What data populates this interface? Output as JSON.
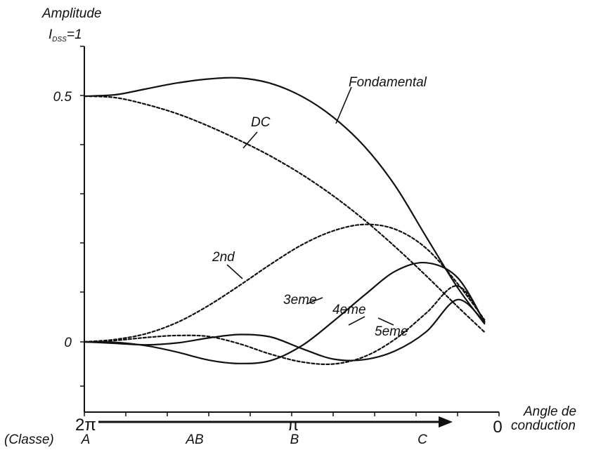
{
  "chart_data": {
    "type": "line",
    "title": "",
    "ylabel_line1": "Amplitude",
    "ylabel_line2_main": "I",
    "ylabel_line2_sub": "DSS",
    "ylabel_line2_rest": "=1",
    "xlabel_line1": "Angle de",
    "xlabel_line2": "conduction",
    "x_tick_labels": [
      "2π",
      "π",
      "0"
    ],
    "y_tick_labels": [
      "0.5",
      "0"
    ],
    "classe_label": "(Classe)",
    "classes": [
      "A",
      "AB",
      "B",
      "C"
    ],
    "xlim": [
      6.2832,
      0
    ],
    "ylim": [
      -0.09,
      0.57
    ],
    "grid": false,
    "legend": "none",
    "series": [
      {
        "name": "Fondamental",
        "style": "solid",
        "x": [
          6.283,
          5.81,
          5.34,
          4.87,
          4.4,
          3.93,
          3.46,
          2.98,
          2.51,
          2.04,
          1.57,
          1.1,
          0.63,
          0.22
        ],
        "y": [
          0.5,
          0.503,
          0.515,
          0.527,
          0.535,
          0.537,
          0.526,
          0.499,
          0.457,
          0.398,
          0.317,
          0.213,
          0.111,
          0.037
        ]
      },
      {
        "name": "DC",
        "style": "dashed",
        "x": [
          6.283,
          5.81,
          5.34,
          4.87,
          4.4,
          3.93,
          3.46,
          2.98,
          2.51,
          2.04,
          1.57,
          1.1,
          0.63,
          0.22
        ],
        "y": [
          0.5,
          0.497,
          0.483,
          0.464,
          0.439,
          0.41,
          0.378,
          0.34,
          0.297,
          0.248,
          0.193,
          0.134,
          0.072,
          0.02
        ]
      },
      {
        "name": "2nd",
        "style": "dashed",
        "x": [
          6.283,
          5.81,
          5.34,
          4.87,
          4.4,
          3.93,
          3.46,
          2.98,
          2.51,
          2.04,
          1.57,
          1.1,
          0.63,
          0.22
        ],
        "y": [
          0.0,
          0.005,
          0.017,
          0.04,
          0.074,
          0.115,
          0.158,
          0.198,
          0.226,
          0.239,
          0.229,
          0.19,
          0.119,
          0.045
        ]
      },
      {
        "name": "3eme",
        "style": "solid",
        "x": [
          6.283,
          5.81,
          5.34,
          4.87,
          4.4,
          3.93,
          3.46,
          2.98,
          2.51,
          2.04,
          1.57,
          1.1,
          0.63,
          0.22
        ],
        "y": [
          0.0,
          -0.001,
          -0.008,
          -0.021,
          -0.037,
          -0.044,
          -0.038,
          -0.007,
          0.042,
          0.095,
          0.144,
          0.161,
          0.131,
          0.04
        ]
      },
      {
        "name": "4eme",
        "style": "dashed",
        "x": [
          6.283,
          5.81,
          5.34,
          4.87,
          4.4,
          3.93,
          3.46,
          2.98,
          2.51,
          2.04,
          1.57,
          1.1,
          0.63,
          0.22
        ],
        "y": [
          0.0,
          0.003,
          0.009,
          0.013,
          0.011,
          -0.004,
          -0.025,
          -0.041,
          -0.045,
          -0.03,
          0.006,
          0.059,
          0.114,
          0.042
        ]
      },
      {
        "name": "5eme",
        "style": "solid",
        "x": [
          6.283,
          5.81,
          5.34,
          4.87,
          4.4,
          3.93,
          3.46,
          2.98,
          2.51,
          2.04,
          1.57,
          1.1,
          0.63,
          0.22
        ],
        "y": [
          0.0,
          -0.003,
          -0.006,
          -0.002,
          0.008,
          0.015,
          0.01,
          -0.014,
          -0.035,
          -0.036,
          -0.018,
          0.021,
          0.086,
          0.04
        ]
      }
    ]
  }
}
